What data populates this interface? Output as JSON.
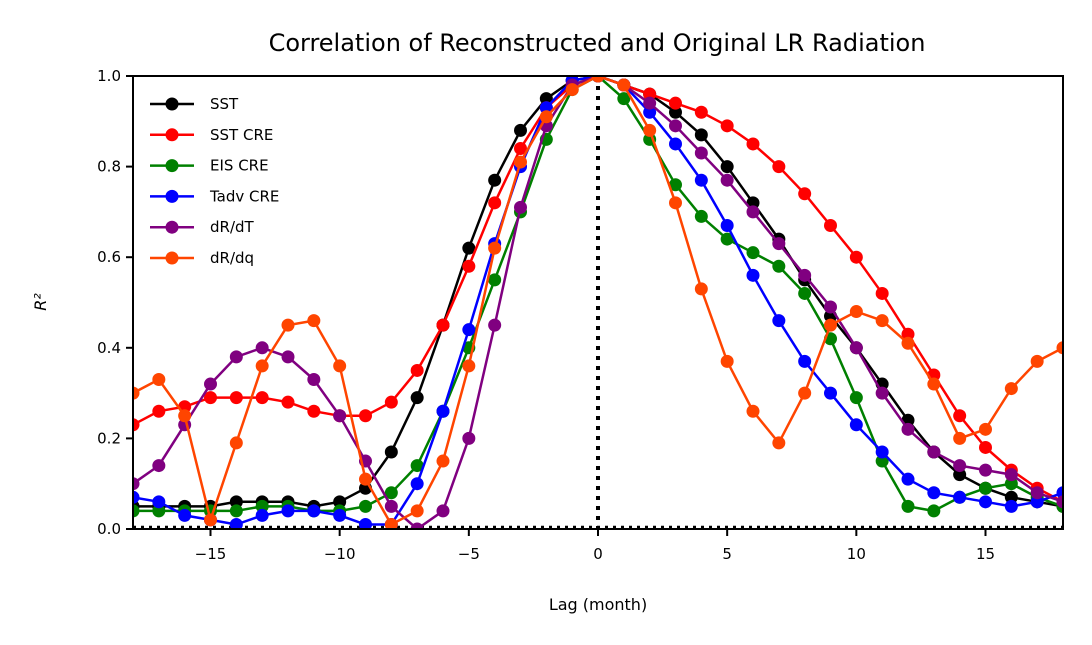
{
  "chart_data": {
    "type": "line",
    "title": "Correlation of Reconstructed and Original LR Radiation",
    "xlabel": "Lag (month)",
    "ylabel": "R²",
    "xlim": [
      -18,
      18
    ],
    "ylim": [
      0,
      1.0
    ],
    "xticks": [
      -15,
      -10,
      -5,
      0,
      5,
      10,
      15
    ],
    "xtick_labels": [
      "−15",
      "−10",
      "−5",
      "0",
      "5",
      "10",
      "15"
    ],
    "yticks": [
      0,
      0.2,
      0.4,
      0.6,
      0.8,
      1.0
    ],
    "ytick_labels": [
      "0.0",
      "0.2",
      "0.4",
      "0.6",
      "0.8",
      "1.0"
    ],
    "grid": false,
    "legend_position": "upper-left",
    "reference_lines": [
      {
        "orientation": "vertical",
        "x": 0,
        "style": "dotted",
        "color": "#000000"
      },
      {
        "orientation": "horizontal",
        "y": 0,
        "style": "dotted",
        "color": "#000000"
      }
    ],
    "x": [
      -18,
      -17,
      -16,
      -15,
      -14,
      -13,
      -12,
      -11,
      -10,
      -9,
      -8,
      -7,
      -6,
      -5,
      -4,
      -3,
      -2,
      -1,
      0,
      1,
      2,
      3,
      4,
      5,
      6,
      7,
      8,
      9,
      10,
      11,
      12,
      13,
      14,
      15,
      16,
      17,
      18
    ],
    "series": [
      {
        "name": "SST",
        "color": "#000000",
        "values": [
          0.05,
          0.05,
          0.05,
          0.05,
          0.06,
          0.06,
          0.06,
          0.05,
          0.06,
          0.09,
          0.17,
          0.29,
          0.45,
          0.62,
          0.77,
          0.88,
          0.95,
          0.99,
          1.0,
          0.98,
          0.96,
          0.92,
          0.87,
          0.8,
          0.72,
          0.64,
          0.55,
          0.47,
          0.4,
          0.32,
          0.24,
          0.17,
          0.12,
          0.09,
          0.07,
          0.06,
          0.05
        ]
      },
      {
        "name": "SST CRE",
        "color": "#ff0000",
        "values": [
          0.23,
          0.26,
          0.27,
          0.29,
          0.29,
          0.29,
          0.28,
          0.26,
          0.25,
          0.25,
          0.28,
          0.35,
          0.45,
          0.58,
          0.72,
          0.84,
          0.93,
          0.98,
          1.0,
          0.98,
          0.96,
          0.94,
          0.92,
          0.89,
          0.85,
          0.8,
          0.74,
          0.67,
          0.6,
          0.52,
          0.43,
          0.34,
          0.25,
          0.18,
          0.13,
          0.09,
          0.06
        ]
      },
      {
        "name": "EIS CRE",
        "color": "#008000",
        "values": [
          0.04,
          0.04,
          0.04,
          0.04,
          0.04,
          0.05,
          0.05,
          0.04,
          0.04,
          0.05,
          0.08,
          0.14,
          0.26,
          0.4,
          0.55,
          0.7,
          0.86,
          0.97,
          1.0,
          0.95,
          0.86,
          0.76,
          0.69,
          0.64,
          0.61,
          0.58,
          0.52,
          0.42,
          0.29,
          0.15,
          0.05,
          0.04,
          0.07,
          0.09,
          0.1,
          0.07,
          0.05
        ]
      },
      {
        "name": "Tadv CRE",
        "color": "#0000ff",
        "values": [
          0.07,
          0.06,
          0.03,
          0.02,
          0.01,
          0.03,
          0.04,
          0.04,
          0.03,
          0.01,
          0.01,
          0.1,
          0.26,
          0.44,
          0.63,
          0.8,
          0.93,
          0.99,
          1.0,
          0.98,
          0.92,
          0.85,
          0.77,
          0.67,
          0.56,
          0.46,
          0.37,
          0.3,
          0.23,
          0.17,
          0.11,
          0.08,
          0.07,
          0.06,
          0.05,
          0.06,
          0.08
        ]
      },
      {
        "name": "dR/dT",
        "color": "#800080",
        "values": [
          0.1,
          0.14,
          0.23,
          0.32,
          0.38,
          0.4,
          0.38,
          0.33,
          0.25,
          0.15,
          0.05,
          0.0,
          0.04,
          0.2,
          0.45,
          0.71,
          0.89,
          0.98,
          1.0,
          0.98,
          0.94,
          0.89,
          0.83,
          0.77,
          0.7,
          0.63,
          0.56,
          0.49,
          0.4,
          0.3,
          0.22,
          0.17,
          0.14,
          0.13,
          0.12,
          0.08,
          0.06
        ]
      },
      {
        "name": "dR/dq",
        "color": "#ff4500",
        "values": [
          0.3,
          0.33,
          0.25,
          0.02,
          0.19,
          0.36,
          0.45,
          0.46,
          0.36,
          0.11,
          0.01,
          0.04,
          0.15,
          0.36,
          0.62,
          0.81,
          0.91,
          0.97,
          1.0,
          0.98,
          0.88,
          0.72,
          0.53,
          0.37,
          0.26,
          0.19,
          0.3,
          0.45,
          0.48,
          0.46,
          0.41,
          0.32,
          0.2,
          0.22,
          0.31,
          0.37,
          0.4
        ]
      }
    ]
  }
}
